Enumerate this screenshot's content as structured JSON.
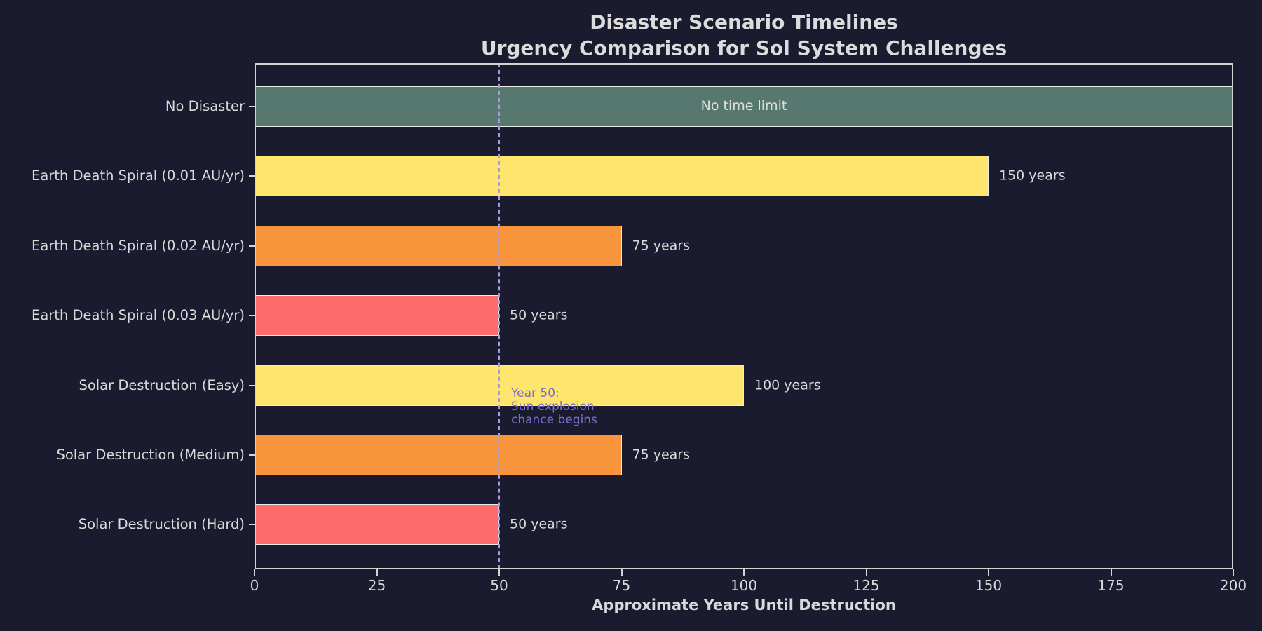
{
  "window": {
    "background": "#1a1b2e"
  },
  "chart_data": {
    "type": "bar",
    "orientation": "horizontal",
    "title": "Disaster Scenario Timelines",
    "subtitle": "Urgency Comparison for Sol System Challenges",
    "xlabel": "Approximate Years Until Destruction",
    "xlim": [
      0,
      200
    ],
    "x_ticks": [
      0,
      25,
      50,
      75,
      100,
      125,
      150,
      175,
      200
    ],
    "grid": false,
    "legend": "none",
    "categories": [
      "No Disaster",
      "Earth Death Spiral (0.01 AU/yr)",
      "Earth Death Spiral (0.02 AU/yr)",
      "Earth Death Spiral (0.03 AU/yr)",
      "Solar Destruction (Easy)",
      "Solar Destruction (Medium)",
      "Solar Destruction (Hard)"
    ],
    "bars": [
      {
        "category": "No Disaster",
        "value": 200,
        "label": "No time limit",
        "label_placement": "inside-center",
        "color": "#57786f"
      },
      {
        "category": "Earth Death Spiral (0.01 AU/yr)",
        "value": 150,
        "label": "150 years",
        "label_placement": "right",
        "color": "#fde56e"
      },
      {
        "category": "Earth Death Spiral (0.02 AU/yr)",
        "value": 75,
        "label": "75 years",
        "label_placement": "right",
        "color": "#f9953d"
      },
      {
        "category": "Earth Death Spiral (0.03 AU/yr)",
        "value": 50,
        "label": "50 years",
        "label_placement": "right",
        "color": "#ff6b6b"
      },
      {
        "category": "Solar Destruction (Easy)",
        "value": 100,
        "label": "100 years",
        "label_placement": "right",
        "color": "#fde56e"
      },
      {
        "category": "Solar Destruction (Medium)",
        "value": 75,
        "label": "75 years",
        "label_placement": "right",
        "color": "#f9953d"
      },
      {
        "category": "Solar Destruction (Hard)",
        "value": 50,
        "label": "50 years",
        "label_placement": "right",
        "color": "#ff6b6b"
      }
    ],
    "reference_line": {
      "x": 50,
      "style": "dashed",
      "color": "#a89ade",
      "annotation_lines": [
        "Year 50:",
        "Sun explosion",
        "chance begins"
      ],
      "annotation_color": "#7d6cd1"
    },
    "colors": {
      "background": "#1a1b2e",
      "text": "#d9d9d9",
      "title_text": "#dcdcdc",
      "spine": "#d4d4d4",
      "bar_edge": "#ebebeb"
    }
  }
}
